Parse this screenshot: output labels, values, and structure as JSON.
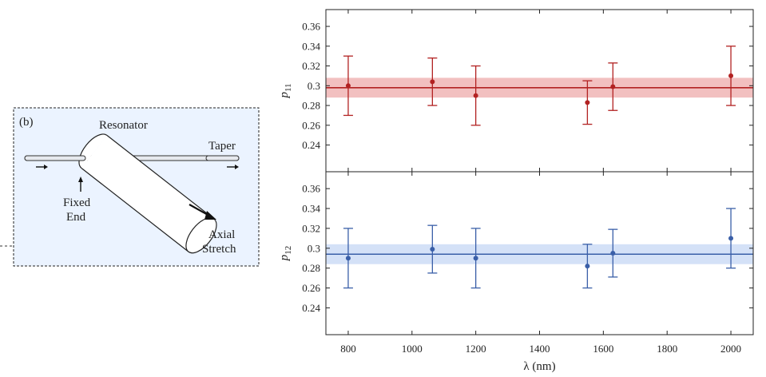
{
  "diagram": {
    "panel_label": "(b)",
    "resonator_label": "Resonator",
    "taper_label": "Taper",
    "fixed_end_line1": "Fixed",
    "fixed_end_line2": "End",
    "axial_stretch_line1": "Axial",
    "axial_stretch_line2": "Stretch",
    "background_color": "#ebf3ff"
  },
  "chart_data": [
    {
      "type": "scatter",
      "ylabel_main": "p",
      "ylabel_sub": "11",
      "color": "#b22222",
      "band_color": "#f2c0c0",
      "x": [
        800,
        1064,
        1200,
        1550,
        1630,
        2000
      ],
      "y": [
        0.3,
        0.304,
        0.29,
        0.283,
        0.299,
        0.31
      ],
      "err": [
        0.03,
        0.024,
        0.03,
        0.022,
        0.024,
        0.03
      ],
      "fit_value": 0.298,
      "fit_band": [
        0.288,
        0.308
      ],
      "xlim": [
        730,
        2070
      ],
      "ylim": [
        0.213,
        0.377
      ],
      "yticks": [
        "0.24",
        "0.26",
        "0.28",
        "0.3",
        "0.32",
        "0.34",
        "0.36"
      ],
      "grid": false
    },
    {
      "type": "scatter",
      "ylabel_main": "p",
      "ylabel_sub": "12",
      "xlabel": "λ (nm)",
      "color": "#3a5fa8",
      "band_color": "#d4e1f7",
      "x": [
        800,
        1064,
        1200,
        1550,
        1630,
        2000
      ],
      "y": [
        0.29,
        0.299,
        0.29,
        0.282,
        0.295,
        0.31
      ],
      "err": [
        0.03,
        0.024,
        0.03,
        0.022,
        0.024,
        0.03
      ],
      "fit_value": 0.294,
      "fit_band": [
        0.284,
        0.304
      ],
      "xlim": [
        730,
        2070
      ],
      "ylim": [
        0.213,
        0.377
      ],
      "xticks": [
        "800",
        "1000",
        "1200",
        "1400",
        "1600",
        "1800",
        "2000"
      ],
      "yticks": [
        "0.24",
        "0.26",
        "0.28",
        "0.3",
        "0.32",
        "0.34",
        "0.36"
      ],
      "grid": false
    }
  ]
}
